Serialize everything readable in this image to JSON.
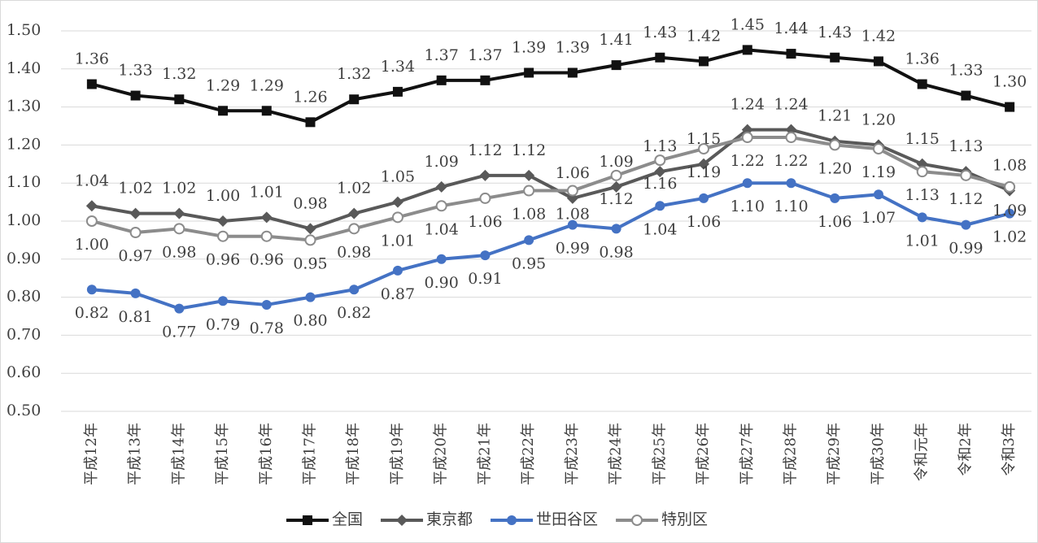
{
  "chart_data": {
    "type": "line",
    "categories": [
      "平成12年",
      "平成13年",
      "平成14年",
      "平成15年",
      "平成16年",
      "平成17年",
      "平成18年",
      "平成19年",
      "平成20年",
      "平成21年",
      "平成22年",
      "平成23年",
      "平成24年",
      "平成25年",
      "平成26年",
      "平成27年",
      "平成28年",
      "平成29年",
      "平成30年",
      "令和元年",
      "令和2年",
      "令和3年"
    ],
    "ylim": [
      0.5,
      1.5
    ],
    "yticks": [
      {
        "value": 0.5,
        "label": "0.50"
      },
      {
        "value": 0.6,
        "label": "0.60"
      },
      {
        "value": 0.7,
        "label": "0.70"
      },
      {
        "value": 0.8,
        "label": "0.80"
      },
      {
        "value": 0.9,
        "label": "0.90"
      },
      {
        "value": 1.0,
        "label": "1.00"
      },
      {
        "value": 1.1,
        "label": "1.10"
      },
      {
        "value": 1.2,
        "label": "1.20"
      },
      {
        "value": 1.3,
        "label": "1.30"
      },
      {
        "value": 1.4,
        "label": "1.40"
      },
      {
        "value": 1.5,
        "label": "1.50"
      }
    ],
    "grid": true,
    "series": [
      {
        "name": "全国",
        "color": "#111111",
        "marker": "square",
        "label_position": "above",
        "values": [
          1.36,
          1.33,
          1.32,
          1.29,
          1.29,
          1.26,
          1.32,
          1.34,
          1.37,
          1.37,
          1.39,
          1.39,
          1.41,
          1.43,
          1.42,
          1.45,
          1.44,
          1.43,
          1.42,
          1.36,
          1.33,
          1.3
        ],
        "value_labels": [
          "1.36",
          "1.33",
          "1.32",
          "1.29",
          "1.29",
          "1.26",
          "1.32",
          "1.34",
          "1.37",
          "1.37",
          "1.39",
          "1.39",
          "1.41",
          "1.43",
          "1.42",
          "1.45",
          "1.44",
          "1.43",
          "1.42",
          "1.36",
          "1.33",
          "1.30"
        ]
      },
      {
        "name": "東京都",
        "color": "#595959",
        "marker": "diamond",
        "label_position": "above",
        "values": [
          1.04,
          1.02,
          1.02,
          1.0,
          1.01,
          0.98,
          1.02,
          1.05,
          1.09,
          1.12,
          1.12,
          1.06,
          1.09,
          1.13,
          1.15,
          1.24,
          1.24,
          1.21,
          1.2,
          1.15,
          1.13,
          1.08
        ],
        "value_labels": [
          "1.04",
          "1.02",
          "1.02",
          "1.00",
          "1.01",
          "0.98",
          "1.02",
          "1.05",
          "1.09",
          "1.12",
          "1.12",
          "1.06",
          "1.09",
          "1.13",
          "1.15",
          "1.24",
          "1.24",
          "1.21",
          "1.20",
          "1.15",
          "1.13",
          "1.08"
        ]
      },
      {
        "name": "世田谷区",
        "color": "#4472c4",
        "marker": "circle",
        "label_position": "below",
        "values": [
          0.82,
          0.81,
          0.77,
          0.79,
          0.78,
          0.8,
          0.82,
          0.87,
          0.9,
          0.91,
          0.95,
          0.99,
          0.98,
          1.04,
          1.06,
          1.1,
          1.1,
          1.06,
          1.07,
          1.01,
          0.99,
          1.02
        ],
        "value_labels": [
          "0.82",
          "0.81",
          "0.77",
          "0.79",
          "0.78",
          "0.80",
          "0.82",
          "0.87",
          "0.90",
          "0.91",
          "0.95",
          "0.99",
          "0.98",
          "1.04",
          "1.06",
          "1.10",
          "1.10",
          "1.06",
          "1.07",
          "1.01",
          "0.99",
          "1.02"
        ]
      },
      {
        "name": "特別区",
        "color": "#8c8c8c",
        "marker": "hollow-circle",
        "label_position": "below",
        "values": [
          1.0,
          0.97,
          0.98,
          0.96,
          0.96,
          0.95,
          0.98,
          1.01,
          1.04,
          1.06,
          1.08,
          1.08,
          1.12,
          1.16,
          1.19,
          1.22,
          1.22,
          1.2,
          1.19,
          1.13,
          1.12,
          1.09
        ],
        "value_labels": [
          "1.00",
          "0.97",
          "0.98",
          "0.96",
          "0.96",
          "0.95",
          "0.98",
          "1.01",
          "1.04",
          "1.06",
          "1.08",
          "1.08",
          "1.12",
          "1.16",
          "1.19",
          "1.22",
          "1.22",
          "1.20",
          "1.19",
          "1.13",
          "1.12",
          "1.09"
        ]
      }
    ],
    "legend": "bottom"
  }
}
